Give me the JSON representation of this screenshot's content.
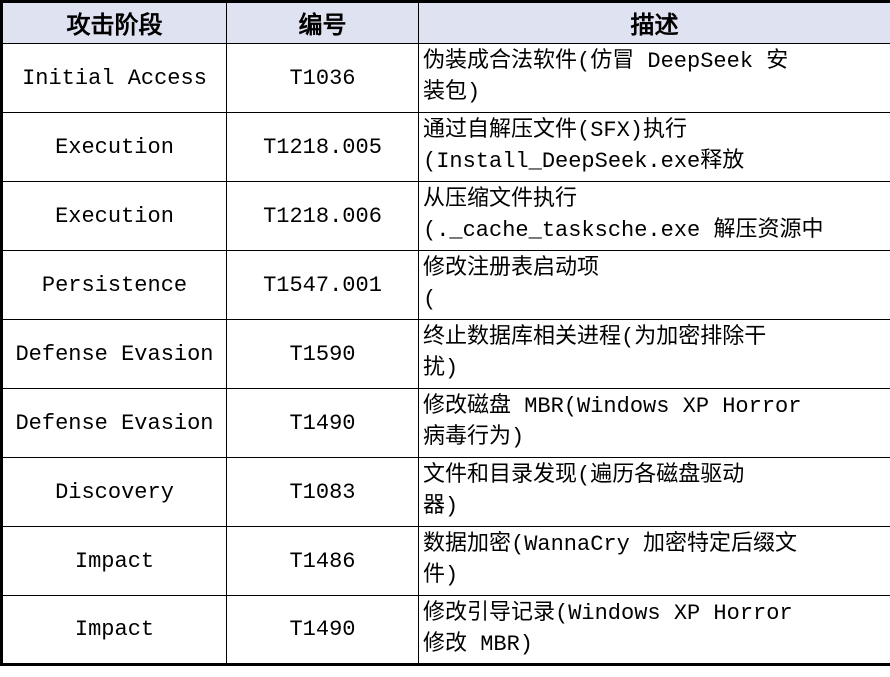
{
  "colors": {
    "header_bg": "#dfe2f1",
    "border": "#000000",
    "text": "#000000",
    "row_bg": "#ffffff"
  },
  "table": {
    "headers": [
      "攻击阶段",
      "编号",
      "描述"
    ],
    "rows": [
      {
        "phase": "Initial Access",
        "id": "T1036",
        "desc": "伪装成合法软件(仿冒 DeepSeek 安\n装包)"
      },
      {
        "phase": "Execution",
        "id": "T1218.005",
        "desc": "通过自解压文件(SFX)执行\n(Install_DeepSeek.exe释放"
      },
      {
        "phase": "Execution",
        "id": "T1218.006",
        "desc": "从压缩文件执行\n(._cache_tasksche.exe 解压资源中"
      },
      {
        "phase": "Persistence",
        "id": "T1547.001",
        "desc": "修改注册表启动项\n("
      },
      {
        "phase": "Defense Evasion",
        "id": "T1590",
        "desc": "终止数据库相关进程(为加密排除干\n扰)"
      },
      {
        "phase": "Defense Evasion",
        "id": "T1490",
        "desc": "修改磁盘 MBR(Windows XP Horror\n病毒行为)"
      },
      {
        "phase": "Discovery",
        "id": "T1083",
        "desc": "文件和目录发现(遍历各磁盘驱动\n器)"
      },
      {
        "phase": "Impact",
        "id": "T1486",
        "desc": "数据加密(WannaCry 加密特定后缀文\n件)"
      },
      {
        "phase": "Impact",
        "id": "T1490",
        "desc": "修改引导记录(Windows XP Horror\n修改 MBR)"
      }
    ]
  }
}
